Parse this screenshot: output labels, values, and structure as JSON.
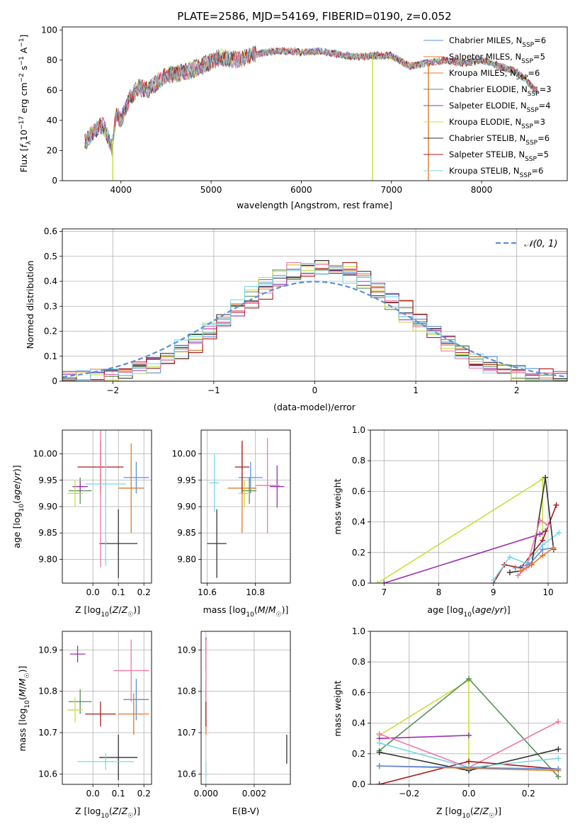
{
  "figure_title": "PLATE=2586, MJD=54169, FIBERID=0190, z=0.052",
  "series_colors": [
    "#5c8fd6",
    "#e07a2e",
    "#5a8f5a",
    "#9b30b0",
    "#c7e03a",
    "#333333",
    "#a81a1a",
    "#f07aa8",
    "#7ad8e6"
  ],
  "chart_data": [
    {
      "id": "spectrum",
      "type": "line",
      "title": "PLATE=2586, MJD=54169, FIBERID=0190, z=0.052",
      "xlabel": "wavelength [Angstrom, rest frame]",
      "ylabel": "Flux [f_λ10^-17 erg cm^-2 s^-1 A^-1]",
      "xlim": [
        3350,
        8950
      ],
      "ylim": [
        0,
        102
      ],
      "xticks": [
        4000,
        5000,
        6000,
        7000,
        8000
      ],
      "yticks": [
        0,
        20,
        40,
        60,
        80,
        100
      ],
      "grid": false,
      "legend_position": "top-right",
      "legend": [
        {
          "label": "Chabrier MILES, N_SSP=6",
          "color": "#5c8fd6"
        },
        {
          "label": "Salpeter MILES, N_SSP=5",
          "color": "#e07a2e"
        },
        {
          "label": "Kroupa MILES, N_SSP=6",
          "color": "#e07a2e"
        },
        {
          "label": "Chabrier ELODIE, N_SSP=3",
          "color": "#5a8f5a"
        },
        {
          "label": "Salpeter ELODIE, N_SSP=4",
          "color": "#9b30b0"
        },
        {
          "label": "Kroupa ELODIE, N_SSP=3",
          "color": "#c7e03a"
        },
        {
          "label": "Chabrier STELIB, N_SSP=6",
          "color": "#333333"
        },
        {
          "label": "Salpeter STELIB, N_SSP=5",
          "color": "#a81a1a"
        },
        {
          "label": "Kroupa STELIB, N_SSP=6",
          "color": "#7ad8e6"
        }
      ],
      "envelope": {
        "x": [
          3600,
          3700,
          3800,
          3900,
          3950,
          4000,
          4100,
          4200,
          4300,
          4400,
          4500,
          4700,
          4900,
          5100,
          5300,
          5500,
          5700,
          5900,
          6000,
          6200,
          6400,
          6600,
          6800,
          7000,
          7200,
          7400,
          7600,
          7800,
          8000,
          8200,
          8400,
          8600
        ],
        "y": [
          25,
          33,
          37,
          22,
          45,
          40,
          55,
          62,
          60,
          65,
          70,
          72,
          76,
          82,
          80,
          84,
          86,
          86,
          85,
          86,
          84,
          82,
          83,
          83,
          76,
          78,
          80,
          78,
          80,
          76,
          72,
          60
        ]
      },
      "drops": [
        {
          "x": 3910,
          "color": "#c7e03a"
        },
        {
          "x": 6790,
          "color": "#c7e03a"
        },
        {
          "x": 7410,
          "color": "#e07a2e"
        }
      ]
    },
    {
      "id": "residuals",
      "type": "step-histogram",
      "xlabel": "(data-model)/error",
      "ylabel": "Normed distribution",
      "xlim": [
        -2.5,
        2.5
      ],
      "ylim": [
        0,
        0.61
      ],
      "xticks": [
        -2,
        -1,
        0,
        1,
        2
      ],
      "yticks": [
        0.0,
        0.1,
        0.2,
        0.3,
        0.4,
        0.5,
        0.6
      ],
      "grid": true,
      "reference_curve": {
        "label": "𝒩(0, 1)",
        "mean": 0,
        "sigma": 1,
        "color": "#5c8fd6",
        "style": "dashed"
      },
      "legend_position": "top-right"
    },
    {
      "id": "age_vs_Z",
      "type": "errorbar",
      "xlabel": "Z [log10(Z/Z☉)]",
      "ylabel": "age  [log10(age/yr)]",
      "xlim": [
        -0.12,
        0.23
      ],
      "ylim": [
        9.755,
        10.045
      ],
      "xticks": [
        -0.0,
        0.1,
        0.2
      ],
      "xtick_labels": [
        "0.0",
        "0.1",
        "0.2"
      ],
      "yticks": [
        9.8,
        9.85,
        9.9,
        9.95,
        10.0
      ],
      "ytick_labels": [
        "9.80",
        "9.85",
        "9.90",
        "9.95",
        "10.00"
      ],
      "grid": true,
      "points": [
        {
          "x": 0.17,
          "y": 9.955,
          "xerr": 0.05,
          "yerr": 0.03,
          "color": "#5c8fd6"
        },
        {
          "x": 0.15,
          "y": 9.935,
          "xerr": 0.05,
          "yerr": 0.085,
          "color": "#e07a2e"
        },
        {
          "x": -0.05,
          "y": 9.93,
          "xerr": 0.045,
          "yerr": 0.025,
          "color": "#5a8f5a"
        },
        {
          "x": -0.05,
          "y": 9.938,
          "xerr": 0.03,
          "yerr": 0.01,
          "color": "#9b30b0"
        },
        {
          "x": -0.07,
          "y": 9.925,
          "xerr": 0.03,
          "yerr": 0.025,
          "color": "#c7e03a"
        },
        {
          "x": 0.1,
          "y": 9.83,
          "xerr": 0.075,
          "yerr": 0.065,
          "color": "#333333"
        },
        {
          "x": 0.03,
          "y": 9.975,
          "xerr": 0.09,
          "yerr": 0.05,
          "color": "#a81a1a"
        },
        {
          "x": 0.03,
          "y": 9.945,
          "xerr": 0.0,
          "yerr": 0.16,
          "color": "#f07aa8"
        },
        {
          "x": 0.05,
          "y": 9.943,
          "xerr": 0.08,
          "yerr": 0.155,
          "color": "#7ad8e6"
        }
      ]
    },
    {
      "id": "age_vs_mass",
      "type": "errorbar",
      "xlabel": "mass [log10(M/M☉)]",
      "xlim": [
        10.575,
        10.945
      ],
      "ylim": [
        9.755,
        10.045
      ],
      "xticks": [
        10.6,
        10.8
      ],
      "xtick_labels": [
        "10.6",
        "10.8"
      ],
      "yticks": [
        9.8,
        9.85,
        9.9,
        9.95,
        10.0
      ],
      "ytick_labels": [
        "9.80",
        "9.85",
        "9.90",
        "9.95",
        "10.00"
      ],
      "grid": true,
      "points": [
        {
          "x": 10.78,
          "y": 9.955,
          "xerr": 0.05,
          "yerr": 0.03,
          "color": "#5c8fd6"
        },
        {
          "x": 10.745,
          "y": 9.935,
          "xerr": 0.06,
          "yerr": 0.085,
          "color": "#e07a2e"
        },
        {
          "x": 10.775,
          "y": 9.93,
          "xerr": 0.03,
          "yerr": 0.025,
          "color": "#5a8f5a"
        },
        {
          "x": 10.89,
          "y": 9.938,
          "xerr": 0.03,
          "yerr": 0.04,
          "color": "#9b30b0"
        },
        {
          "x": 10.755,
          "y": 9.925,
          "xerr": 0.025,
          "yerr": 0.025,
          "color": "#c7e03a"
        },
        {
          "x": 10.64,
          "y": 9.83,
          "xerr": 0.04,
          "yerr": 0.065,
          "color": "#333333"
        },
        {
          "x": 10.745,
          "y": 9.975,
          "xerr": 0.03,
          "yerr": 0.05,
          "color": "#a81a1a"
        },
        {
          "x": 10.85,
          "y": 9.94,
          "xerr": 0.05,
          "yerr": 0.09,
          "color": "#f07aa8"
        },
        {
          "x": 10.63,
          "y": 9.945,
          "xerr": 0.02,
          "yerr": 0.055,
          "color": "#7ad8e6"
        }
      ]
    },
    {
      "id": "weight_vs_age",
      "type": "line",
      "xlabel": "age  [log10(age/yr)]",
      "ylabel": "mass weight",
      "xlim": [
        6.75,
        10.35
      ],
      "ylim": [
        0,
        1.0
      ],
      "xticks": [
        7,
        8,
        9,
        10
      ],
      "yticks": [
        0.0,
        0.2,
        0.4,
        0.6,
        0.8,
        1.0
      ],
      "ytick_labels": [
        "0.0",
        "0.2",
        "0.4",
        "0.6",
        "0.8",
        "1.0"
      ],
      "grid": true,
      "series": [
        {
          "color": "#c7e03a",
          "x": [
            6.88,
            9.9,
            9.9
          ],
          "y": [
            0.0,
            0.68,
            0.32
          ]
        },
        {
          "color": "#9b30b0",
          "x": [
            7.0,
            9.85,
            9.95
          ],
          "y": [
            0.0,
            0.32,
            0.34
          ]
        },
        {
          "color": "#a81a1a",
          "x": [
            9.0,
            9.2,
            9.5,
            9.9,
            10.15
          ],
          "y": [
            0.0,
            0.12,
            0.1,
            0.28,
            0.51
          ]
        },
        {
          "color": "#7ad8e6",
          "x": [
            9.0,
            9.3,
            9.6,
            9.9,
            10.2
          ],
          "y": [
            0.02,
            0.17,
            0.13,
            0.25,
            0.33
          ]
        },
        {
          "color": "#333333",
          "x": [
            9.3,
            9.5,
            9.7,
            9.95,
            10.1
          ],
          "y": [
            0.07,
            0.08,
            0.12,
            0.69,
            0.22
          ]
        },
        {
          "color": "#f07aa8",
          "x": [
            9.45,
            9.6,
            9.85,
            10.0
          ],
          "y": [
            0.05,
            0.1,
            0.41,
            0.38
          ]
        },
        {
          "color": "#5c8fd6",
          "x": [
            9.4,
            9.65,
            9.9,
            10.1
          ],
          "y": [
            0.1,
            0.12,
            0.22,
            0.23
          ]
        },
        {
          "color": "#e07a2e",
          "x": [
            9.5,
            9.7,
            9.9,
            10.1
          ],
          "y": [
            0.08,
            0.12,
            0.18,
            0.23
          ]
        }
      ]
    },
    {
      "id": "mass_vs_Z",
      "type": "errorbar",
      "xlabel": "Z [log10(Z/Z☉)]",
      "ylabel": "mass [log10(M/M☉)]",
      "xlim": [
        -0.12,
        0.23
      ],
      "ylim": [
        10.575,
        10.945
      ],
      "xticks": [
        -0.0,
        0.1,
        0.2
      ],
      "xtick_labels": [
        "0.0",
        "0.1",
        "0.2"
      ],
      "yticks": [
        10.6,
        10.7,
        10.8,
        10.9
      ],
      "ytick_labels": [
        "10.6",
        "10.7",
        "10.8",
        "10.9"
      ],
      "grid": true,
      "points": [
        {
          "x": 0.17,
          "y": 10.78,
          "xerr": 0.05,
          "yerr": 0.05,
          "color": "#5c8fd6"
        },
        {
          "x": 0.16,
          "y": 10.745,
          "xerr": 0.06,
          "yerr": 0.05,
          "color": "#e07a2e"
        },
        {
          "x": -0.05,
          "y": 10.775,
          "xerr": 0.045,
          "yerr": 0.03,
          "color": "#5a8f5a"
        },
        {
          "x": -0.06,
          "y": 10.89,
          "xerr": 0.03,
          "yerr": 0.02,
          "color": "#9b30b0"
        },
        {
          "x": -0.07,
          "y": 10.755,
          "xerr": 0.03,
          "yerr": 0.03,
          "color": "#c7e03a"
        },
        {
          "x": 0.1,
          "y": 10.64,
          "xerr": 0.075,
          "yerr": 0.055,
          "color": "#333333"
        },
        {
          "x": 0.03,
          "y": 10.745,
          "xerr": 0.06,
          "yerr": 0.03,
          "color": "#a81a1a"
        },
        {
          "x": 0.15,
          "y": 10.85,
          "xerr": 0.07,
          "yerr": 0.075,
          "color": "#f07aa8"
        },
        {
          "x": 0.05,
          "y": 10.63,
          "xerr": 0.11,
          "yerr": 0.02,
          "color": "#7ad8e6"
        }
      ]
    },
    {
      "id": "mass_vs_EBV",
      "type": "errorbar",
      "xlabel": "E(B-V)",
      "xlim": [
        -0.0002,
        0.0035
      ],
      "ylim": [
        10.575,
        10.945
      ],
      "xticks": [
        0.0,
        0.002
      ],
      "xtick_labels": [
        "0.000",
        "0.002"
      ],
      "yticks": [
        10.6,
        10.7,
        10.8,
        10.9
      ],
      "ytick_labels": [
        "10.6",
        "10.7",
        "10.8",
        "10.9"
      ],
      "grid": true,
      "points": [
        {
          "x": 0.0,
          "y": 10.78,
          "xerr": 0,
          "yerr": 0.05,
          "color": "#5c8fd6"
        },
        {
          "x": 0.0,
          "y": 10.745,
          "xerr": 0,
          "yerr": 0.05,
          "color": "#e07a2e"
        },
        {
          "x": 0.0,
          "y": 10.775,
          "xerr": 0,
          "yerr": 0.03,
          "color": "#5a8f5a"
        },
        {
          "x": 0.0,
          "y": 10.89,
          "xerr": 0,
          "yerr": 0.04,
          "color": "#9b30b0"
        },
        {
          "x": 0.0,
          "y": 10.755,
          "xerr": 0,
          "yerr": 0.03,
          "color": "#c7e03a"
        },
        {
          "x": 0.00335,
          "y": 10.66,
          "xerr": 0,
          "yerr": 0.035,
          "color": "#333333"
        },
        {
          "x": 0.0,
          "y": 10.745,
          "xerr": 0,
          "yerr": 0.03,
          "color": "#a81a1a"
        },
        {
          "x": 0.0,
          "y": 10.85,
          "xerr": 0,
          "yerr": 0.075,
          "color": "#f07aa8"
        },
        {
          "x": 0.0,
          "y": 10.61,
          "xerr": 0,
          "yerr": 0.02,
          "color": "#7ad8e6"
        }
      ]
    },
    {
      "id": "weight_vs_Z",
      "type": "line",
      "xlabel": "Z [log10(Z/Z☉)]",
      "ylabel": "mass weight",
      "xlim": [
        -0.33,
        0.33
      ],
      "ylim": [
        0,
        1.0
      ],
      "xticks": [
        -0.2,
        0.0,
        0.2
      ],
      "xtick_labels": [
        "−0.2",
        "0.0",
        "0.2"
      ],
      "yticks": [
        0.0,
        0.2,
        0.4,
        0.6,
        0.8,
        1.0
      ],
      "ytick_labels": [
        "0.0",
        "0.2",
        "0.4",
        "0.6",
        "0.8",
        "1.0"
      ],
      "grid": true,
      "series": [
        {
          "color": "#c7e03a",
          "x": [
            -0.3,
            0.0,
            0.0
          ],
          "y": [
            0.32,
            0.68,
            0.1
          ]
        },
        {
          "color": "#5a8f5a",
          "x": [
            -0.3,
            0.0,
            0.3
          ],
          "y": [
            0.22,
            0.69,
            0.05
          ]
        },
        {
          "color": "#9b30b0",
          "x": [
            -0.3,
            0.0
          ],
          "y": [
            0.3,
            0.32
          ]
        },
        {
          "color": "#f07aa8",
          "x": [
            -0.3,
            0.0,
            0.3
          ],
          "y": [
            0.33,
            0.11,
            0.41
          ]
        },
        {
          "color": "#333333",
          "x": [
            -0.3,
            0.0,
            0.3
          ],
          "y": [
            0.21,
            0.09,
            0.23
          ]
        },
        {
          "color": "#a81a1a",
          "x": [
            -0.3,
            0.0,
            0.3
          ],
          "y": [
            0.0,
            0.15,
            0.1
          ]
        },
        {
          "color": "#7ad8e6",
          "x": [
            -0.3,
            0.0,
            0.3
          ],
          "y": [
            0.27,
            0.11,
            0.17
          ]
        },
        {
          "color": "#e07a2e",
          "x": [
            -0.3,
            0.3
          ],
          "y": [
            0.12,
            0.09
          ]
        },
        {
          "color": "#5c8fd6",
          "x": [
            -0.3,
            0.3
          ],
          "y": [
            0.12,
            0.1
          ]
        }
      ]
    }
  ]
}
